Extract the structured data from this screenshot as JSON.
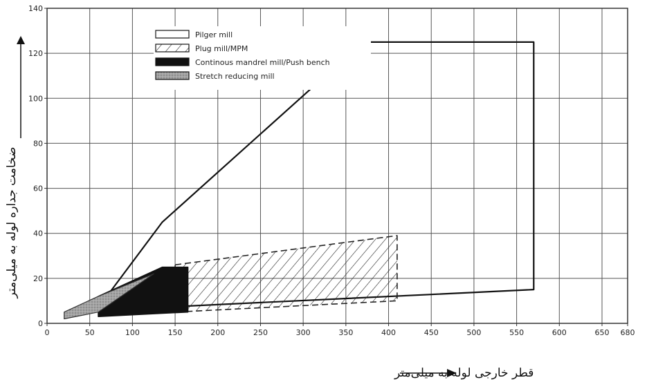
{
  "chart_data": {
    "type": "area",
    "xlabel": "قطر خارجی لوله به میلی‌متر",
    "ylabel": "ضخامت جداره لوله به میلی‌متر",
    "xlim": [
      0,
      680
    ],
    "ylim": [
      0,
      140
    ],
    "xticks": [
      0,
      50,
      100,
      150,
      200,
      250,
      300,
      350,
      400,
      450,
      500,
      550,
      600,
      650,
      680
    ],
    "yticks": [
      0,
      20,
      40,
      60,
      80,
      100,
      120,
      140
    ],
    "grid": true,
    "legend_position": "top-center",
    "series": [
      {
        "name": "Pilger mill",
        "style": "outline",
        "polygon": [
          [
            70,
            12
          ],
          [
            135,
            45
          ],
          [
            370,
            125
          ],
          [
            570,
            125
          ],
          [
            570,
            15
          ],
          [
            70,
            6
          ]
        ]
      },
      {
        "name": "Plug mill/MPM",
        "style": "hatched",
        "polygon": [
          [
            150,
            26
          ],
          [
            410,
            39
          ],
          [
            410,
            10
          ],
          [
            150,
            5
          ]
        ]
      },
      {
        "name": "Continous mandrel mill/Push bench",
        "style": "solid-black",
        "polygon": [
          [
            60,
            3
          ],
          [
            60,
            12
          ],
          [
            135,
            25
          ],
          [
            165,
            25
          ],
          [
            165,
            5
          ]
        ]
      },
      {
        "name": "Stretch reducing mill",
        "style": "gray",
        "polygon": [
          [
            20,
            2
          ],
          [
            20,
            5
          ],
          [
            60,
            12
          ],
          [
            125,
            22
          ],
          [
            60,
            5
          ]
        ]
      }
    ]
  },
  "colors": {
    "grid": "#555555",
    "outline": "#111111",
    "solid": "#111111",
    "gray": "#9a9a9a"
  }
}
